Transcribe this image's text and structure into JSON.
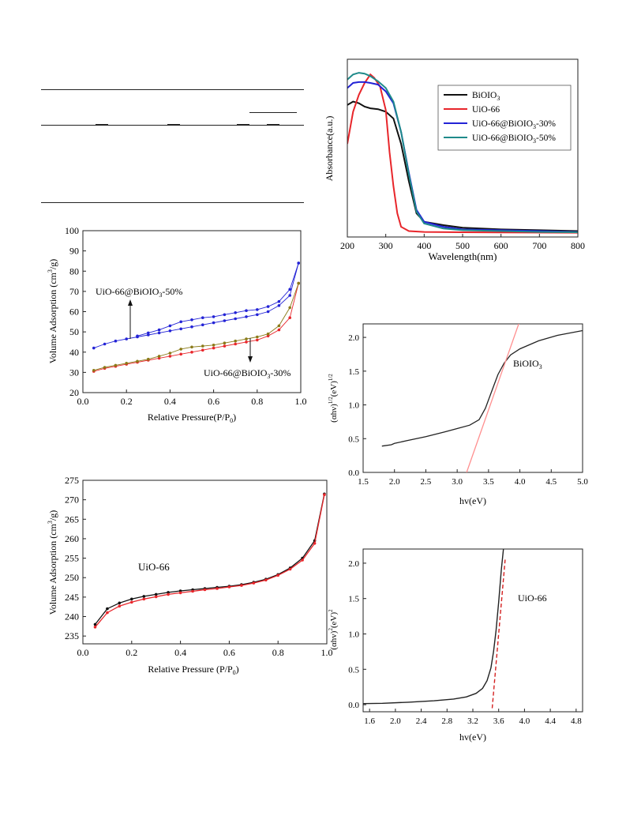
{
  "colors": {
    "black": "#111111",
    "red": "#e8262b",
    "blue": "#2323d6",
    "teal": "#1f8a8a",
    "olive": "#8a7a18",
    "pink": "#ff8f8f",
    "darkred": "#d42020"
  },
  "chart_data": [
    {
      "id": "uvvis",
      "type": "line",
      "xlabel": "Wavelength(nm)",
      "ylabel": "Absorbance(a.u.)",
      "xlim": [
        200,
        800
      ],
      "ylim": [
        0,
        1.05
      ],
      "xticks": [
        "200",
        "300",
        "400",
        "500",
        "600",
        "700",
        "800"
      ],
      "legend_placement": "top-right",
      "series": [
        {
          "name": "BiOIO",
          "sub": "3",
          "suffix": "",
          "color": "#111111",
          "x": [
            200,
            215,
            230,
            245,
            260,
            280,
            300,
            320,
            340,
            360,
            380,
            400,
            450,
            500,
            600,
            700,
            800
          ],
          "y": [
            0.78,
            0.8,
            0.79,
            0.77,
            0.76,
            0.755,
            0.74,
            0.7,
            0.55,
            0.33,
            0.14,
            0.09,
            0.07,
            0.055,
            0.045,
            0.04,
            0.035
          ]
        },
        {
          "name": "UiO-66",
          "sub": "",
          "suffix": "",
          "color": "#e8262b",
          "x": [
            200,
            215,
            230,
            245,
            260,
            270,
            285,
            300,
            310,
            320,
            330,
            340,
            360,
            400,
            500,
            800
          ],
          "y": [
            0.55,
            0.74,
            0.84,
            0.91,
            0.96,
            0.94,
            0.89,
            0.75,
            0.5,
            0.3,
            0.14,
            0.06,
            0.035,
            0.03,
            0.028,
            0.025
          ]
        },
        {
          "name": "UiO-66@BiOIO",
          "sub": "3",
          "suffix": "-30%",
          "color": "#2323d6",
          "x": [
            200,
            215,
            230,
            245,
            260,
            280,
            300,
            320,
            340,
            360,
            380,
            400,
            450,
            500,
            600,
            700,
            800
          ],
          "y": [
            0.88,
            0.91,
            0.915,
            0.915,
            0.91,
            0.9,
            0.86,
            0.79,
            0.62,
            0.38,
            0.16,
            0.09,
            0.06,
            0.045,
            0.04,
            0.035,
            0.03
          ]
        },
        {
          "name": "UiO-66@BiOIO",
          "sub": "3",
          "suffix": "-50%",
          "color": "#1f8a8a",
          "x": [
            200,
            215,
            230,
            245,
            260,
            280,
            300,
            320,
            340,
            360,
            380,
            400,
            450,
            500,
            600,
            700,
            800
          ],
          "y": [
            0.93,
            0.96,
            0.97,
            0.965,
            0.95,
            0.92,
            0.88,
            0.8,
            0.62,
            0.37,
            0.15,
            0.08,
            0.05,
            0.04,
            0.035,
            0.03,
            0.028
          ]
        }
      ]
    },
    {
      "id": "bet_composite",
      "type": "line",
      "xlabel": "Relative Pressure(P/P",
      "xlabel_sub": "0",
      "xlabel_end": ")",
      "ylabel": "Volume Adsorption (cm",
      "ylabel_sup": "3",
      "ylabel_end": "/g)",
      "xlim": [
        0,
        1.0
      ],
      "ylim": [
        20,
        100
      ],
      "xticks": [
        "0.0",
        "0.2",
        "0.4",
        "0.6",
        "0.8",
        "1.0"
      ],
      "yticks": [
        "20",
        "30",
        "40",
        "50",
        "60",
        "70",
        "80",
        "90",
        "100"
      ],
      "annotations": [
        {
          "text": "UiO-66@BiOIO",
          "sub": "3",
          "suffix": "-50%"
        },
        {
          "text": "UiO-66@BiOIO",
          "sub": "3",
          "suffix": "-30%"
        }
      ],
      "series": [
        {
          "color": "#2323d6",
          "x": [
            0.05,
            0.1,
            0.15,
            0.2,
            0.25,
            0.3,
            0.35,
            0.4,
            0.45,
            0.5,
            0.55,
            0.6,
            0.65,
            0.7,
            0.75,
            0.8,
            0.85,
            0.9,
            0.95,
            0.99
          ],
          "y": [
            42,
            44,
            45.5,
            46.5,
            47.5,
            48.5,
            49.5,
            50.5,
            51.5,
            52.5,
            53.5,
            54.5,
            55.5,
            56.5,
            57.5,
            58.5,
            60,
            63,
            68,
            84
          ]
        },
        {
          "color": "#2323d6",
          "x": [
            0.99,
            0.95,
            0.9,
            0.85,
            0.8,
            0.75,
            0.7,
            0.65,
            0.6,
            0.55,
            0.5,
            0.45,
            0.4,
            0.35,
            0.3,
            0.25
          ],
          "y": [
            84,
            71,
            65,
            62.5,
            61,
            60.5,
            59.5,
            58.5,
            57.5,
            57,
            56,
            55,
            53,
            51,
            49.5,
            48
          ]
        },
        {
          "color": "#e8262b",
          "x": [
            0.05,
            0.1,
            0.15,
            0.2,
            0.25,
            0.3,
            0.35,
            0.4,
            0.45,
            0.5,
            0.55,
            0.6,
            0.65,
            0.7,
            0.75,
            0.8,
            0.85,
            0.9,
            0.95,
            0.99
          ],
          "y": [
            30.5,
            32,
            33,
            34,
            35,
            36,
            37,
            38,
            39,
            40,
            41,
            42,
            43,
            44,
            45,
            46,
            48,
            51,
            57,
            74
          ]
        },
        {
          "color": "#8a7a18",
          "x": [
            0.99,
            0.95,
            0.9,
            0.85,
            0.8,
            0.75,
            0.7,
            0.65,
            0.6,
            0.55,
            0.5,
            0.45,
            0.4,
            0.35,
            0.3,
            0.25,
            0.2,
            0.15,
            0.1,
            0.05
          ],
          "y": [
            74,
            62,
            53,
            49,
            47.5,
            46.5,
            45.5,
            44.5,
            43.5,
            43,
            42.5,
            41.5,
            39.5,
            38,
            36.5,
            35.5,
            34.5,
            33.5,
            32.5,
            31
          ]
        }
      ]
    },
    {
      "id": "tauc_bioio3",
      "type": "line",
      "xlabel": "hv(eV)",
      "ylabel": "(αhν)",
      "ylabel_sup": "1/2",
      "ylabel_end": "(eV)",
      "ylabel_sup2": "1/2",
      "xlim": [
        1.5,
        5.0
      ],
      "ylim": [
        0,
        2.2
      ],
      "xticks": [
        "1.5",
        "2.0",
        "2.5",
        "3.0",
        "3.5",
        "4.0",
        "4.5",
        "5.0"
      ],
      "yticks": [
        "0.0",
        "0.5",
        "1.0",
        "1.5",
        "2.0"
      ],
      "annotations": [
        {
          "text": "BiOIO",
          "sub": "3",
          "suffix": ""
        }
      ],
      "series": [
        {
          "color": "#222222",
          "x": [
            1.8,
            1.95,
            2.0,
            2.2,
            2.5,
            2.8,
            3.0,
            3.2,
            3.35,
            3.45,
            3.55,
            3.65,
            3.75,
            3.85,
            4.0,
            4.3,
            4.6,
            5.0
          ],
          "y": [
            0.39,
            0.41,
            0.43,
            0.47,
            0.53,
            0.6,
            0.65,
            0.7,
            0.78,
            0.95,
            1.2,
            1.45,
            1.62,
            1.74,
            1.83,
            1.95,
            2.03,
            2.1
          ]
        },
        {
          "color": "#ff8f8f",
          "x": [
            3.15,
            4.0
          ],
          "y": [
            0.0,
            2.25
          ]
        }
      ]
    },
    {
      "id": "tauc_uio66",
      "type": "line",
      "xlabel": "hv(eV)",
      "ylabel": "(αhv)",
      "ylabel_sup": "2",
      "ylabel_end": "(eV)",
      "ylabel_sup2": "2",
      "xlim": [
        1.5,
        4.9
      ],
      "ylim": [
        -0.1,
        2.2
      ],
      "xticks": [
        "1.6",
        "2.0",
        "2.4",
        "2.8",
        "3.2",
        "3.6",
        "4.0",
        "4.4",
        "4.8"
      ],
      "yticks": [
        "0.0",
        "0.5",
        "1.0",
        "1.5",
        "2.0"
      ],
      "annotations": [
        {
          "text": "UiO-66",
          "sub": "",
          "suffix": ""
        }
      ],
      "series": [
        {
          "color": "#222222",
          "x": [
            1.5,
            1.8,
            2.2,
            2.6,
            2.9,
            3.1,
            3.25,
            3.35,
            3.42,
            3.48,
            3.52,
            3.56,
            3.6,
            3.64,
            3.68
          ],
          "y": [
            0.015,
            0.02,
            0.035,
            0.055,
            0.08,
            0.11,
            0.16,
            0.23,
            0.34,
            0.52,
            0.75,
            1.05,
            1.45,
            1.9,
            2.25
          ]
        },
        {
          "color": "#d42020",
          "dashed": true,
          "x": [
            3.5,
            3.7
          ],
          "y": [
            -0.05,
            2.05
          ]
        }
      ]
    },
    {
      "id": "bet_uio66",
      "type": "line",
      "xlabel": "Relative Pressure (P/P",
      "xlabel_sub": "0",
      "xlabel_end": ")",
      "ylabel": "Volume Adsorption (cm",
      "ylabel_sup": "3",
      "ylabel_end": "/g)",
      "xlim": [
        0,
        1.0
      ],
      "ylim": [
        233,
        275
      ],
      "xticks": [
        "0.0",
        "0.2",
        "0.4",
        "0.6",
        "0.8",
        "1.0"
      ],
      "yticks": [
        "235",
        "240",
        "245",
        "250",
        "255",
        "260",
        "265",
        "270",
        "275"
      ],
      "annotations": [
        {
          "text": "UiO-66",
          "sub": "",
          "suffix": ""
        }
      ],
      "series": [
        {
          "color": "#111111",
          "x": [
            0.05,
            0.1,
            0.15,
            0.2,
            0.25,
            0.3,
            0.35,
            0.4,
            0.45,
            0.5,
            0.55,
            0.6,
            0.65,
            0.7,
            0.75,
            0.8,
            0.85,
            0.9,
            0.95,
            0.99
          ],
          "y": [
            238,
            242,
            243.5,
            244.5,
            245.2,
            245.7,
            246.2,
            246.6,
            246.9,
            247.2,
            247.5,
            247.8,
            248.2,
            248.8,
            249.6,
            250.8,
            252.5,
            255,
            259.5,
            271.5
          ]
        },
        {
          "color": "#e8262b",
          "x": [
            0.05,
            0.1,
            0.15,
            0.2,
            0.25,
            0.3,
            0.35,
            0.4,
            0.45,
            0.5,
            0.55,
            0.6,
            0.65,
            0.7,
            0.75,
            0.8,
            0.85,
            0.9,
            0.95,
            0.99
          ],
          "y": [
            237.3,
            241,
            242.7,
            243.7,
            244.5,
            245.1,
            245.7,
            246.1,
            246.5,
            246.9,
            247.2,
            247.6,
            248,
            248.6,
            249.4,
            250.6,
            252.2,
            254.5,
            258.8,
            271.3
          ]
        }
      ]
    }
  ]
}
